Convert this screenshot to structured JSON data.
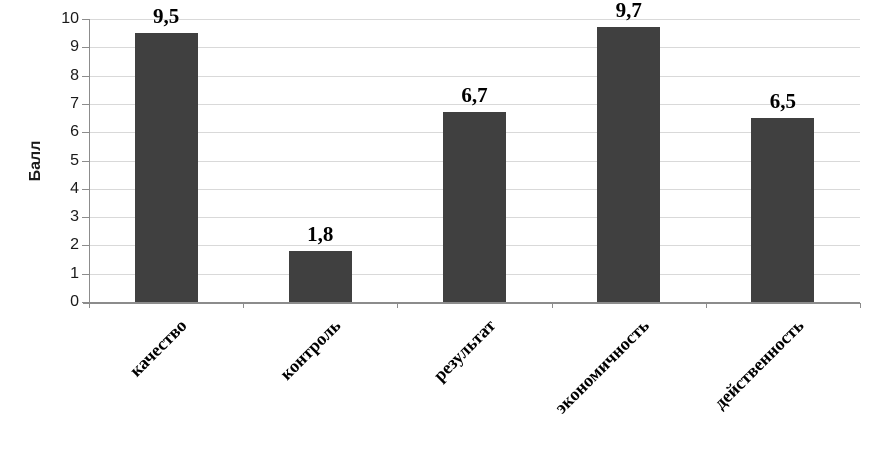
{
  "chart_data": {
    "type": "bar",
    "title": "",
    "ylabel": "Балл",
    "xlabel": "",
    "categories": [
      "качество",
      "контроль",
      "результат",
      "экономичность",
      "действенность"
    ],
    "values": [
      9.5,
      1.8,
      6.7,
      9.7,
      6.5
    ],
    "value_labels": [
      "9,5",
      "1,8",
      "6,7",
      "9,7",
      "6,5"
    ],
    "yticks": [
      "0",
      "1",
      "2",
      "3",
      "4",
      "5",
      "6",
      "7",
      "8",
      "9",
      "10"
    ],
    "ylim": [
      0,
      10
    ],
    "ytick_step": 1,
    "grid": "horizontal",
    "legend": "none",
    "bar_color": "#404040",
    "gridline_color": "#d9d9d9",
    "axis_color": "#8c8c8c",
    "text_color": "#000000"
  }
}
